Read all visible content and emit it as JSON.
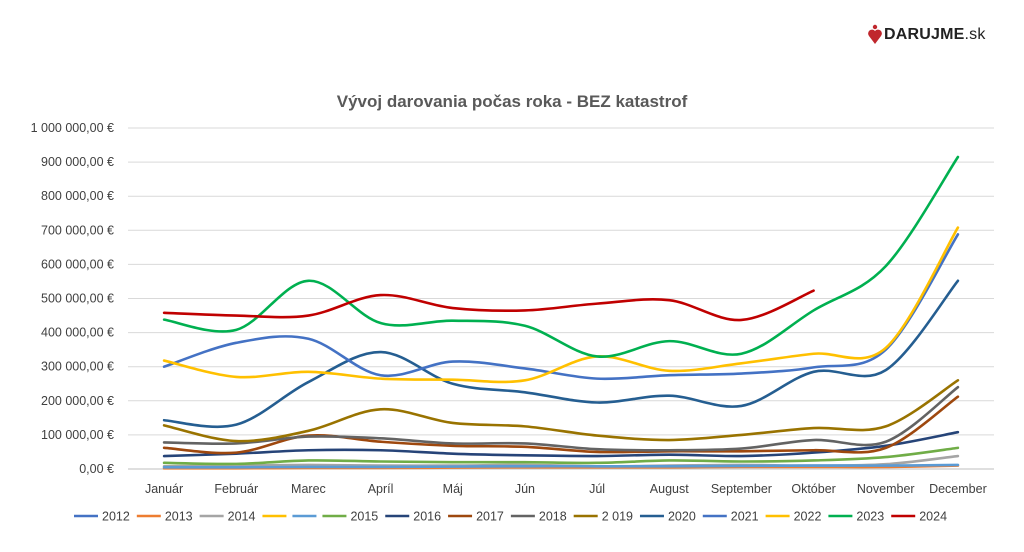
{
  "logo": {
    "brand": "DARUJME",
    "suffix": ".sk",
    "accent": "#c0272d"
  },
  "chart_data": {
    "type": "line",
    "title": "Vývoj darovania počas roka  - BEZ katastrof",
    "xlabel": "",
    "ylabel": "",
    "ylim": [
      0,
      1000000
    ],
    "y_ticks": [
      "0,00 €",
      "100 000,00 €",
      "200 000,00 €",
      "300 000,00 €",
      "400 000,00 €",
      "500 000,00 €",
      "600 000,00 €",
      "700 000,00 €",
      "800 000,00 €",
      "900 000,00 €",
      "1 000 000,00 €"
    ],
    "y_tick_values": [
      0,
      100000,
      200000,
      300000,
      400000,
      500000,
      600000,
      700000,
      800000,
      900000,
      1000000
    ],
    "categories": [
      "Január",
      "Február",
      "Marec",
      "Apríl",
      "Máj",
      "Jún",
      "Júl",
      "August",
      "September",
      "Október",
      "November",
      "December"
    ],
    "grid": true,
    "legend_position": "bottom",
    "series": [
      {
        "name": "2012",
        "color": "#4472c4",
        "values": [
          null,
          null,
          null,
          null,
          null,
          null,
          null,
          null,
          null,
          null,
          null,
          null
        ]
      },
      {
        "name": "2013",
        "color": "#ed7d31",
        "values": [
          2000,
          2000,
          3000,
          3000,
          4000,
          5000,
          5000,
          5000,
          6000,
          6000,
          6000,
          10000
        ]
      },
      {
        "name": "2014",
        "color": "#a5a5a5",
        "values": [
          8000,
          10000,
          12000,
          10000,
          10000,
          12000,
          8000,
          10000,
          12000,
          10000,
          14000,
          38000
        ]
      },
      {
        "name": "",
        "color": "#ffc000",
        "values": [
          null,
          null,
          null,
          null,
          null,
          null,
          null,
          null,
          null,
          null,
          null,
          null
        ]
      },
      {
        "name": "",
        "color": "#5b9bd5",
        "values": [
          5000,
          5000,
          6000,
          6000,
          7000,
          8000,
          8000,
          8000,
          9000,
          10000,
          10000,
          12000
        ]
      },
      {
        "name": "2015",
        "color": "#70ad47",
        "values": [
          18000,
          15000,
          25000,
          22000,
          20000,
          20000,
          18000,
          25000,
          22000,
          25000,
          35000,
          62000
        ]
      },
      {
        "name": "2016",
        "color": "#264478",
        "values": [
          38000,
          45000,
          55000,
          55000,
          45000,
          40000,
          38000,
          42000,
          38000,
          48000,
          68000,
          108000
        ]
      },
      {
        "name": "2017",
        "color": "#9e480e",
        "values": [
          62000,
          48000,
          98000,
          80000,
          68000,
          65000,
          50000,
          52000,
          52000,
          55000,
          62000,
          212000
        ]
      },
      {
        "name": "2018",
        "color": "#636363",
        "values": [
          78000,
          75000,
          95000,
          90000,
          75000,
          75000,
          58000,
          55000,
          60000,
          85000,
          80000,
          240000
        ]
      },
      {
        "name": "2 019",
        "color": "#997300",
        "values": [
          128000,
          82000,
          112000,
          175000,
          135000,
          125000,
          98000,
          85000,
          100000,
          120000,
          125000,
          260000
        ]
      },
      {
        "name": "2020",
        "color": "#255e91",
        "values": [
          143000,
          130000,
          255000,
          343000,
          250000,
          225000,
          195000,
          215000,
          185000,
          285000,
          290000,
          552000
        ]
      },
      {
        "name": "2021",
        "color": "#4472c4",
        "values": [
          300000,
          370000,
          382000,
          275000,
          315000,
          295000,
          265000,
          275000,
          280000,
          298000,
          350000,
          688000
        ]
      },
      {
        "name": "2022",
        "color": "#ffc000",
        "values": [
          318000,
          270000,
          285000,
          265000,
          262000,
          260000,
          330000,
          288000,
          310000,
          338000,
          355000,
          708000
        ]
      },
      {
        "name": "2023",
        "color": "#00b050",
        "values": [
          438000,
          408000,
          552000,
          428000,
          435000,
          420000,
          330000,
          375000,
          338000,
          465000,
          595000,
          915000
        ]
      },
      {
        "name": "2024",
        "color": "#c00000",
        "values": [
          458000,
          450000,
          450000,
          510000,
          472000,
          465000,
          485000,
          495000,
          437000,
          523000,
          null,
          null
        ]
      }
    ]
  }
}
